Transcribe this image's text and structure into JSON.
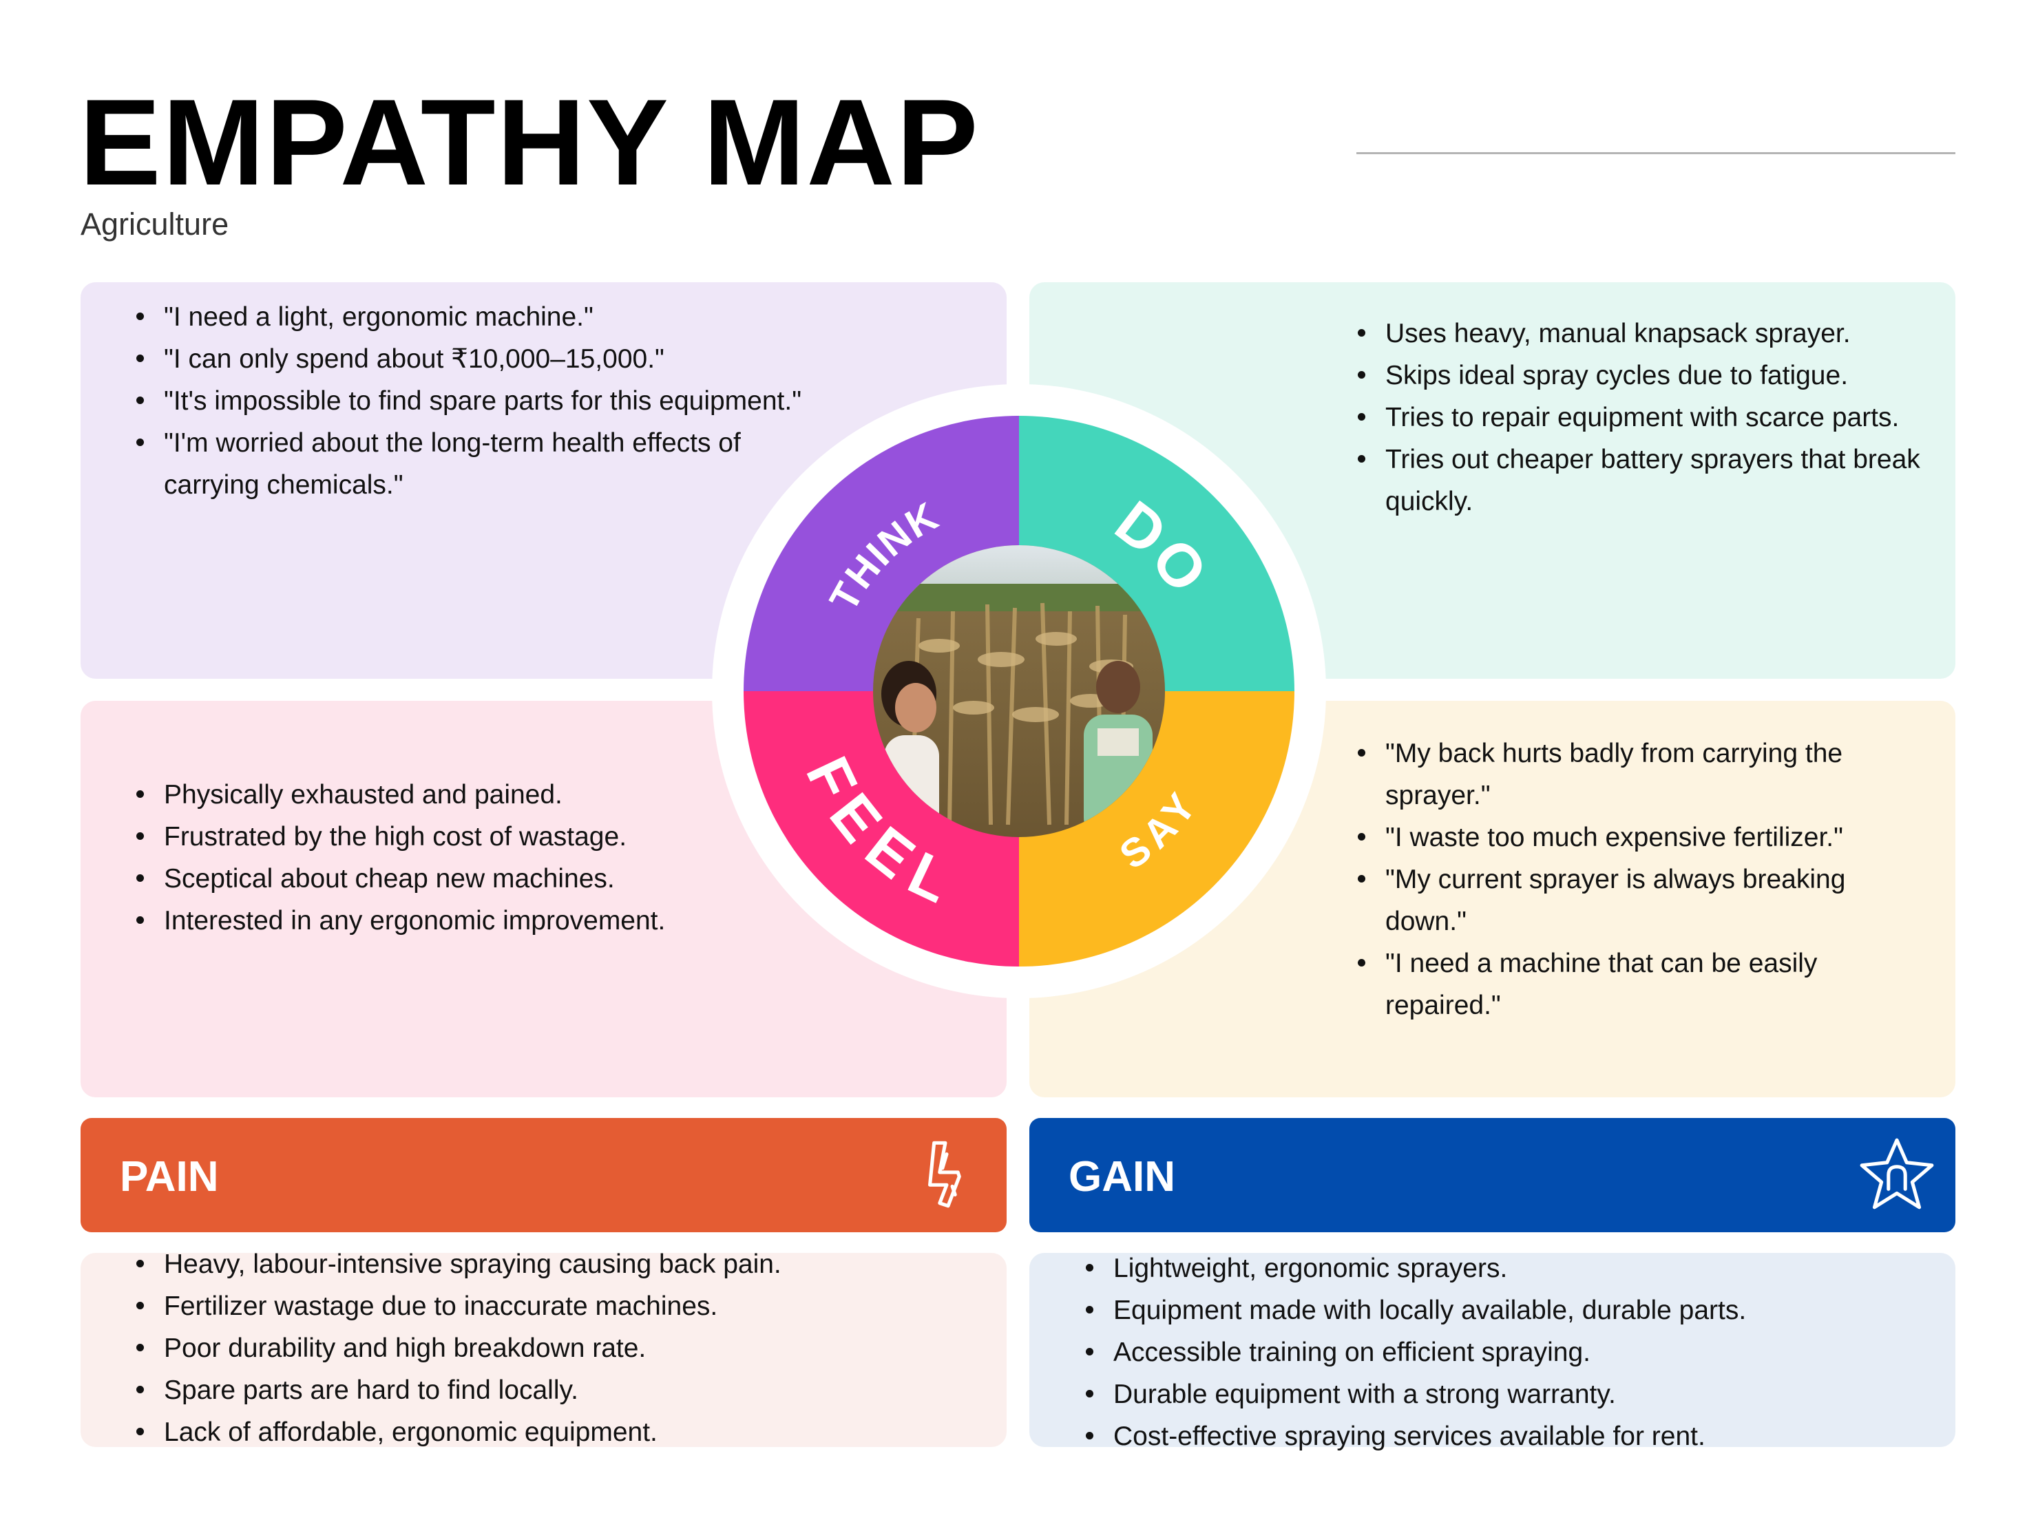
{
  "header": {
    "title": "EMPATHY MAP",
    "subtitle": "Agriculture"
  },
  "quadrants": {
    "think": {
      "label": "THINK",
      "color": "#9651dc",
      "items": [
        "\"I need a light, ergonomic machine.\"",
        "\"I can only spend about ₹10,000–15,000.\"",
        "\"It's impossible to find spare parts for this equipment.\"",
        "\"I'm worried about the long-term health effects of carrying chemicals.\""
      ]
    },
    "do": {
      "label": "DO",
      "color": "#44d6bb",
      "items": [
        "Uses heavy, manual knapsack sprayer.",
        "Skips ideal spray cycles due to fatigue.",
        "Tries to repair equipment with scarce parts.",
        "Tries out cheaper battery sprayers that break quickly."
      ]
    },
    "feel": {
      "label": "FEEL",
      "color": "#fe2d7d",
      "items": [
        "Physically exhausted and pained.",
        "Frustrated by the high cost of wastage.",
        "Sceptical about cheap new machines.",
        "Interested in any ergonomic improvement."
      ]
    },
    "say": {
      "label": "SAY",
      "color": "#fdb91f",
      "items": [
        "\"My back hurts badly from carrying the sprayer.\"",
        "\"I waste too much expensive fertilizer.\"",
        "\"My current sprayer is always breaking down.\"",
        "\"I need a machine that can be easily repaired.\""
      ]
    }
  },
  "pain": {
    "label": "PAIN",
    "icon": "lightning-bolt-icon",
    "color": "#e45c33",
    "items": [
      "Heavy, labour-intensive spraying causing back pain.",
      "Fertilizer wastage due to inaccurate machines.",
      "Poor durability and high breakdown rate.",
      "Spare parts are hard to find locally.",
      "Lack of affordable, ergonomic equipment."
    ]
  },
  "gain": {
    "label": "GAIN",
    "icon": "star-badge-icon",
    "color": "#024cad",
    "items": [
      "Lightweight, ergonomic sprayers.",
      "Equipment made with locally available, durable parts.",
      "Accessible training on efficient spraying.",
      "Durable equipment with a strong warranty.",
      "Cost-effective spraying services available for rent."
    ]
  }
}
